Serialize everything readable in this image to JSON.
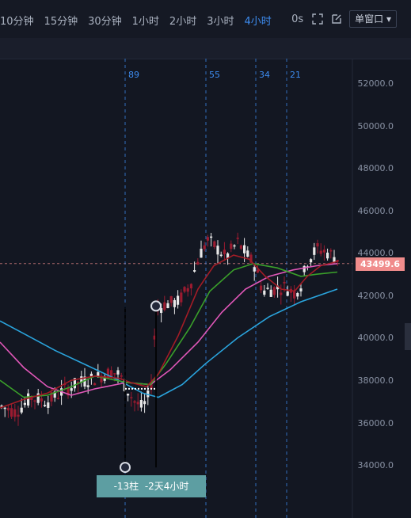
{
  "toolbar": {
    "intervals": [
      "10分钟",
      "15分钟",
      "30分钟",
      "1小时",
      "2小时",
      "3小时",
      "4小时"
    ],
    "active_interval": "4小时",
    "countdown": "0s",
    "window_mode": "单窗口"
  },
  "price_axis": {
    "labels": [
      "52000.0",
      "50000.0",
      "48000.0",
      "46000.0",
      "44000.0",
      "42000.0",
      "40000.0",
      "38000.0",
      "36000.0",
      "34000.0"
    ],
    "current_price": "43499.6"
  },
  "fib_cycles": [
    "89",
    "55",
    "34",
    "21"
  ],
  "measure": {
    "bars": "-13柱",
    "duration": "-2天4小时"
  },
  "colors": {
    "background": "#131722",
    "up": "#e8e8e8",
    "down": "#9b1b30",
    "ma_fast": "#a31c26",
    "ma_mid": "#3aa02a",
    "ma_slow": "#e057b8",
    "ma_long": "#2aa4dd",
    "fib_line": "#3d8cf0",
    "price_tag": "#f08c8c"
  }
}
